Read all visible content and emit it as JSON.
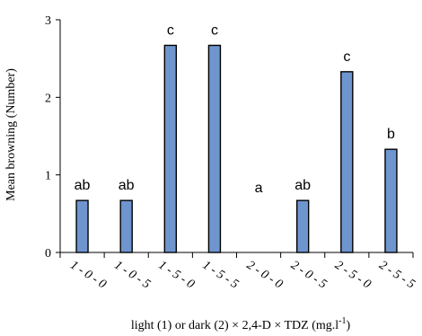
{
  "chart_data": {
    "type": "bar",
    "categories": [
      "1 - 0 - 0",
      "1 - 0 - 5",
      "1 - 5 - 0",
      "1 - 5 - 5",
      "2 - 0 - 0",
      "2 - 0 - 5",
      "2 - 5 - 0",
      "2 - 5 - 5"
    ],
    "values": [
      0.67,
      0.67,
      2.67,
      2.67,
      0,
      0.67,
      2.33,
      1.33
    ],
    "letters": [
      "ab",
      "ab",
      "c",
      "c",
      "a",
      "ab",
      "c",
      "b"
    ],
    "ylabel": "Mean browning  (Number)",
    "xlabel": "light (1) or dark (2) × 2,4-D × TDZ (mg.l",
    "xlabel_sup": "-1",
    "xlabel_suffix": ")",
    "ylim": [
      0,
      3
    ],
    "yticks": [
      0,
      1,
      2,
      3
    ],
    "grid": false,
    "bar_color": "#6f95cf"
  }
}
